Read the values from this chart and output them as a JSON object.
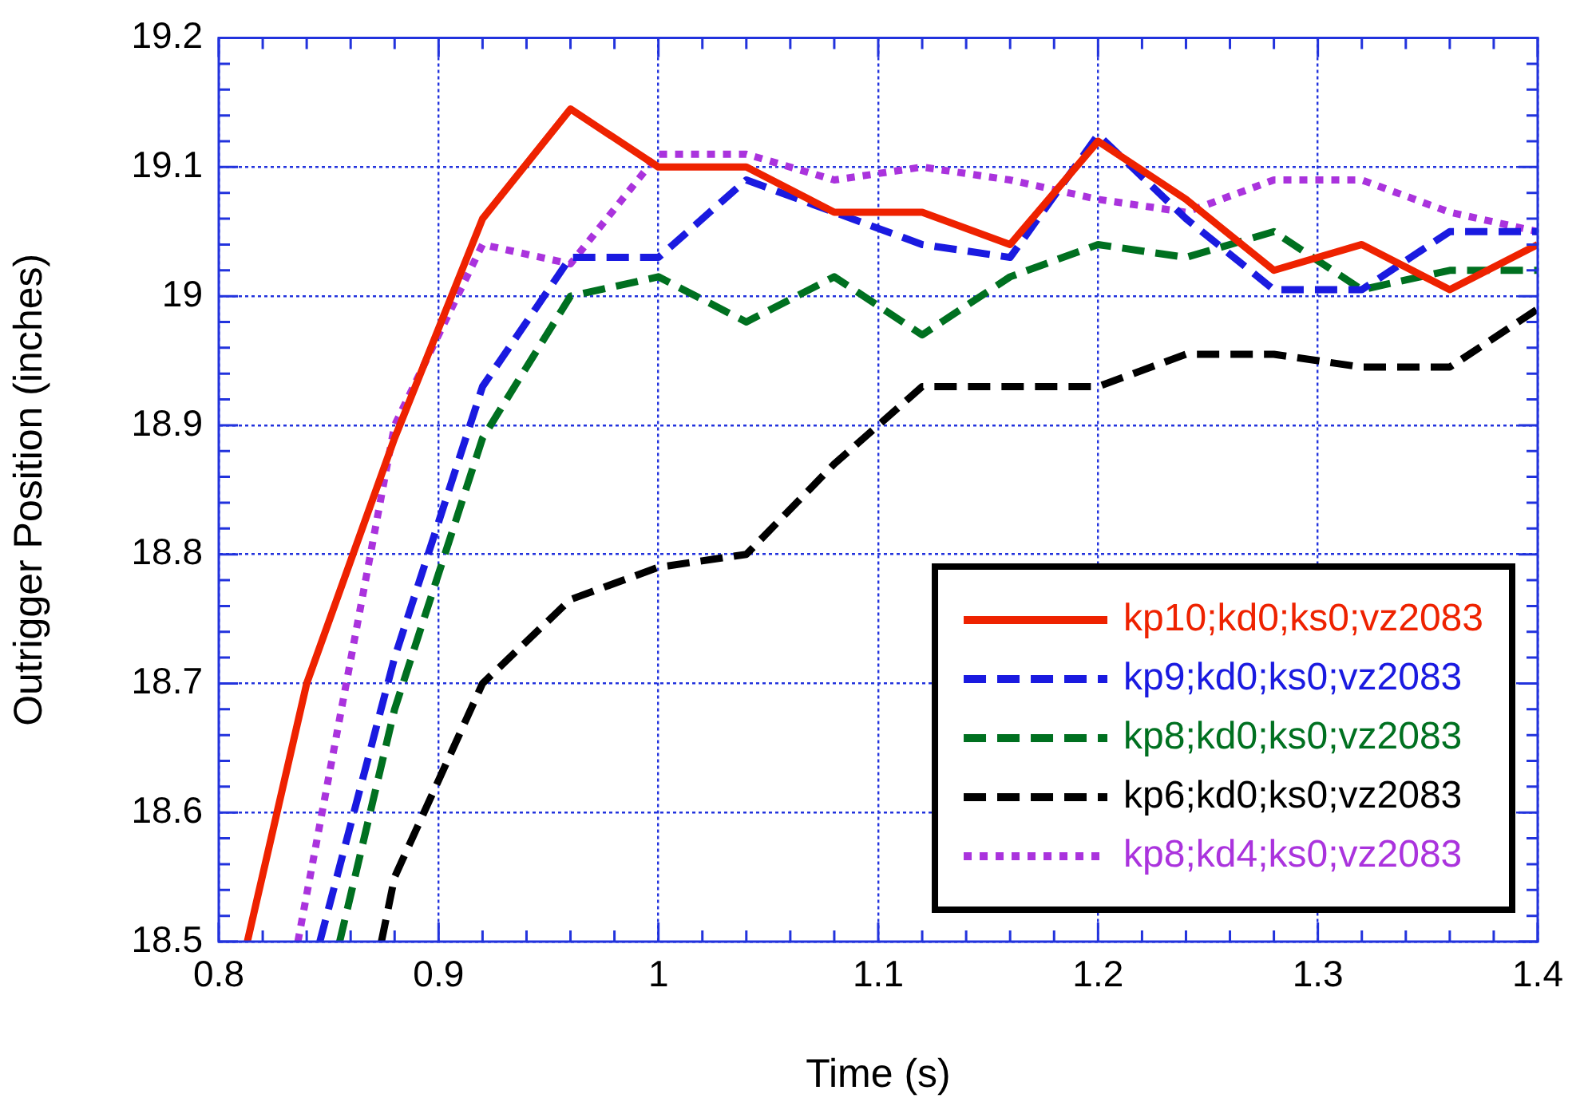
{
  "chart_data": {
    "type": "line",
    "xlabel": "Time (s)",
    "ylabel": "Outrigger Position (inches)",
    "xlim": [
      0.8,
      1.4
    ],
    "xticks": [
      0.8,
      0.9,
      1,
      1.1,
      1.2,
      1.3,
      1.4
    ],
    "ylim": [
      18.5,
      19.2
    ],
    "yticks": [
      18.5,
      18.6,
      18.7,
      18.8,
      18.9,
      19,
      19.1,
      19.2
    ],
    "grid": true,
    "legend": "bottom right",
    "marker": "none",
    "series": [
      {
        "name": "kp10;kd0;ks0;vz2083",
        "color": "#ee2200",
        "line_style": "solid",
        "x": [
          0.813,
          0.84,
          0.88,
          0.92,
          0.96,
          1.0,
          1.04,
          1.08,
          1.12,
          1.16,
          1.2,
          1.24,
          1.28,
          1.32,
          1.36,
          1.4
        ],
        "values": [
          18.5,
          18.7,
          18.89,
          19.06,
          19.145,
          19.1,
          19.1,
          19.065,
          19.065,
          19.04,
          19.12,
          19.075,
          19.02,
          19.04,
          19.005,
          19.04
        ]
      },
      {
        "name": "kp9;kd0;ks0;vz2083",
        "color": "#1a1ae0",
        "line_style": "dashed",
        "x": [
          0.846,
          0.88,
          0.92,
          0.96,
          1.0,
          1.04,
          1.08,
          1.12,
          1.16,
          1.2,
          1.24,
          1.28,
          1.32,
          1.36,
          1.4
        ],
        "values": [
          18.5,
          18.72,
          18.93,
          19.03,
          19.03,
          19.09,
          19.065,
          19.04,
          19.03,
          19.125,
          19.06,
          19.005,
          19.005,
          19.05,
          19.05
        ]
      },
      {
        "name": "kp8;kd0;ks0;vz2083",
        "color": "#007020",
        "line_style": "dashed",
        "x": [
          0.855,
          0.88,
          0.92,
          0.96,
          1.0,
          1.04,
          1.08,
          1.12,
          1.16,
          1.2,
          1.24,
          1.28,
          1.32,
          1.36,
          1.4
        ],
        "values": [
          18.5,
          18.68,
          18.89,
          19.0,
          19.015,
          18.98,
          19.015,
          18.97,
          19.015,
          19.04,
          19.03,
          19.05,
          19.005,
          19.02,
          19.02
        ]
      },
      {
        "name": "kp6;kd0;ks0;vz2083",
        "color": "#000000",
        "line_style": "dashed",
        "x": [
          0.874,
          0.88,
          0.92,
          0.96,
          1.0,
          1.04,
          1.08,
          1.12,
          1.16,
          1.2,
          1.24,
          1.28,
          1.32,
          1.36,
          1.4
        ],
        "values": [
          18.5,
          18.55,
          18.7,
          18.765,
          18.79,
          18.8,
          18.87,
          18.93,
          18.93,
          18.93,
          18.955,
          18.955,
          18.945,
          18.945,
          18.99
        ]
      },
      {
        "name": "kp8;kd4;ks0;vz2083",
        "color": "#aa33dd",
        "line_style": "dotted",
        "x": [
          0.836,
          0.88,
          0.92,
          0.96,
          1.0,
          1.04,
          1.08,
          1.12,
          1.16,
          1.2,
          1.24,
          1.28,
          1.32,
          1.36,
          1.4
        ],
        "values": [
          18.5,
          18.9,
          19.04,
          19.025,
          19.11,
          19.11,
          19.09,
          19.1,
          19.09,
          19.075,
          19.065,
          19.09,
          19.09,
          19.065,
          19.05
        ]
      }
    ]
  }
}
